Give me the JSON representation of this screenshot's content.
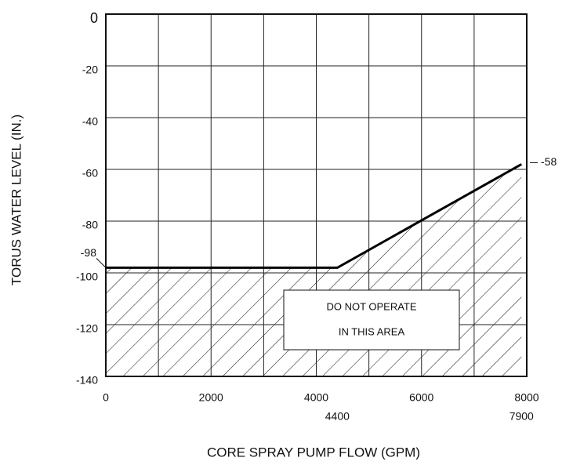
{
  "chart_data": {
    "type": "line",
    "x_axis_label": "CORE SPRAY PUMP FLOW (GPM)",
    "y_axis_label": "TORUS WATER LEVEL (IN.)",
    "x": [
      0,
      4400,
      7900
    ],
    "values": [
      -98,
      -98,
      -58
    ],
    "color": "#000000",
    "xlim": [
      0,
      8000
    ],
    "xticks": [
      0,
      2000,
      4000,
      6000,
      8000
    ],
    "xminor_ticks": [
      1000,
      3000,
      5000,
      7000
    ],
    "ylim": [
      -140,
      0
    ],
    "yticks": [
      0,
      -20,
      -40,
      -60,
      -80,
      -100,
      -120,
      -140
    ],
    "grid": true,
    "hatch_below_line": true,
    "annotation": [
      "DO NOT OPERATE",
      "IN THIS AREA"
    ]
  }
}
